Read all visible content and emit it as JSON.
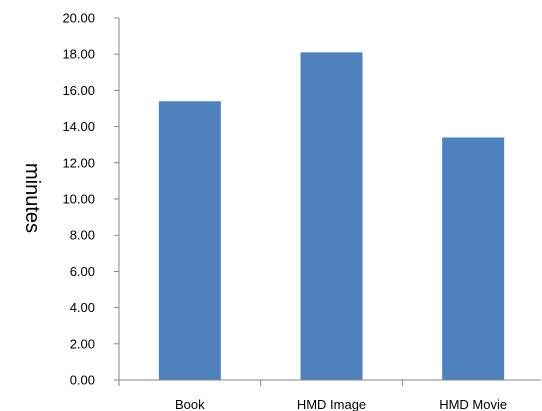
{
  "chart_data": {
    "type": "bar",
    "title": "",
    "xlabel": "",
    "ylabel": "minutes",
    "categories": [
      "Book",
      "HMD Image",
      "HMD Movie"
    ],
    "values": [
      15.4,
      18.1,
      13.4
    ],
    "ylim": [
      0,
      20
    ],
    "ytick_step": 2,
    "ytick_labels": [
      "0.00",
      "2.00",
      "4.00",
      "6.00",
      "8.00",
      "10.00",
      "12.00",
      "14.00",
      "16.00",
      "18.00",
      "20.00"
    ],
    "grid": false,
    "legend": "none",
    "bar_color": "#4F81BD"
  }
}
